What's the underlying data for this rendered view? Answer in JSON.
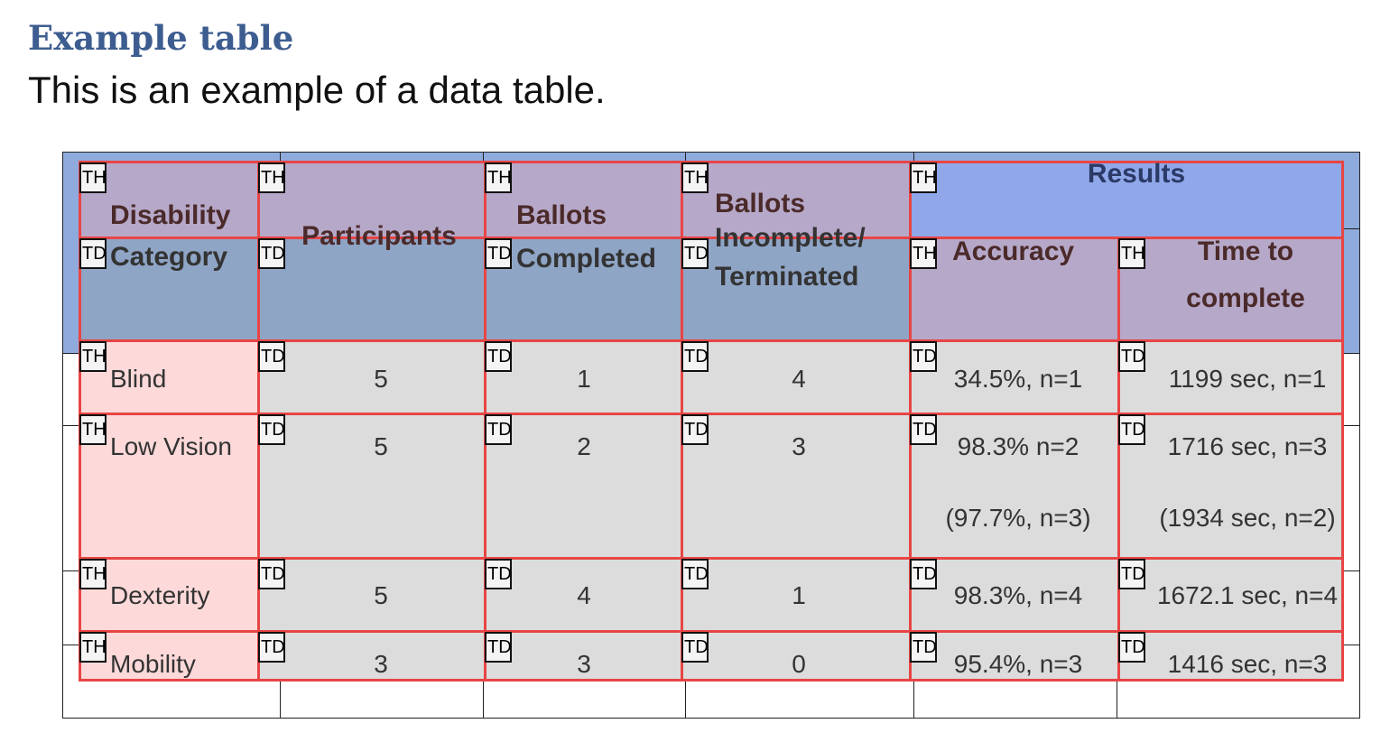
{
  "document": {
    "title": "Example table",
    "subtitle": "This is an example of a data table."
  },
  "colors": {
    "title": "#3d5d90",
    "header_background": "#8fabdd",
    "th_overlay": "#b6a8c8",
    "td_header_overlay": "#8fa5c6",
    "results_overlay": "#90a8ea",
    "row_header_overlay": "#fdd9d9",
    "td_overlay": "#dcdcdc",
    "overlay_border": "#e84545"
  },
  "table": {
    "header": {
      "disability_1": "Disability",
      "disability_2": "Category",
      "participants": "Participants",
      "ballots_completed_1": "Ballots",
      "ballots_completed_2": "Completed",
      "ballots_incomplete_1": "Ballots",
      "ballots_incomplete_2": "Incomplete/",
      "ballots_incomplete_3": "Terminated",
      "results": "Results",
      "accuracy": "Accuracy",
      "time_1": "Time to",
      "time_2": "complete"
    },
    "header_tags": {
      "row1": [
        "TH",
        "TH",
        "TH",
        "TH",
        "TH"
      ],
      "row2": [
        "TD",
        "TD",
        "TD",
        "TD",
        "TH",
        "TH"
      ]
    },
    "rows": [
      {
        "tags": [
          "TH",
          "TD",
          "TD",
          "TD",
          "TD",
          "TD"
        ],
        "cells": [
          "Blind",
          "5",
          "1",
          "4",
          "34.5%, n=1",
          "1199 sec, n=1"
        ],
        "extra": [
          "",
          ""
        ]
      },
      {
        "tags": [
          "TH",
          "TD",
          "TD",
          "TD",
          "TD",
          "TD"
        ],
        "cells": [
          "Low Vision",
          "5",
          "2",
          "3",
          "98.3% n=2",
          "1716 sec, n=3"
        ],
        "extra": [
          "(97.7%, n=3)",
          "(1934 sec, n=2)"
        ]
      },
      {
        "tags": [
          "TH",
          "TD",
          "TD",
          "TD",
          "TD",
          "TD"
        ],
        "cells": [
          "Dexterity",
          "5",
          "4",
          "1",
          "98.3%, n=4",
          "1672.1 sec, n=4"
        ],
        "extra": [
          "",
          ""
        ]
      },
      {
        "tags": [
          "TH",
          "TD",
          "TD",
          "TD",
          "TD",
          "TD"
        ],
        "cells": [
          "Mobility",
          "3",
          "3",
          "0",
          "95.4%, n=3",
          "1416 sec, n=3"
        ],
        "extra": [
          "",
          ""
        ]
      }
    ]
  }
}
